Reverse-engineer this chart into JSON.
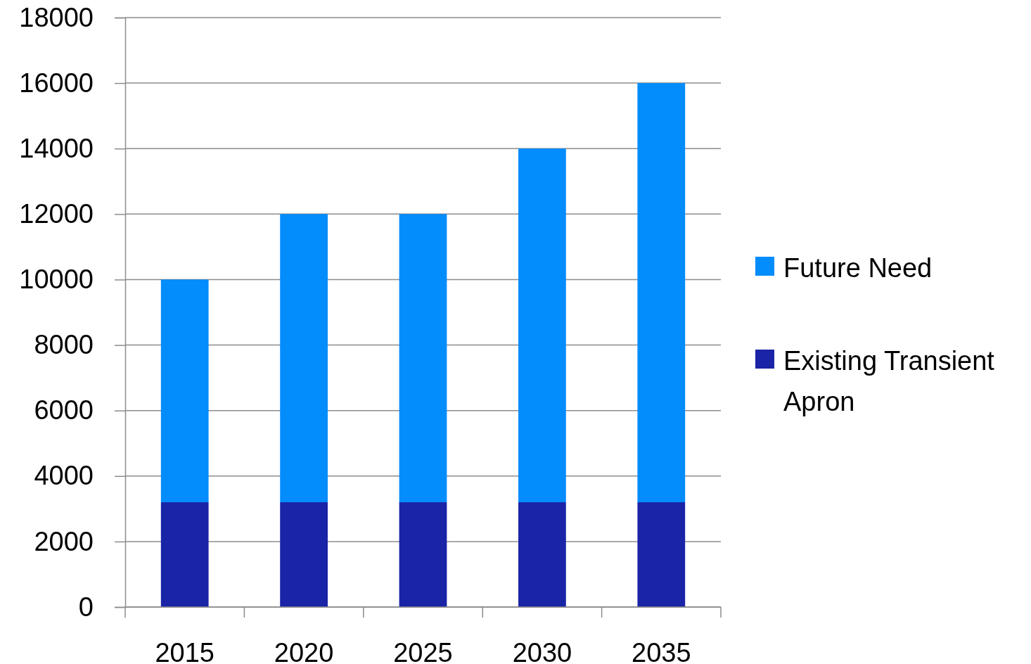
{
  "chart_data": {
    "type": "bar",
    "stacked": true,
    "categories": [
      "2015",
      "2020",
      "2025",
      "2030",
      "2035"
    ],
    "series": [
      {
        "name": "Existing Transient Apron",
        "color": "#1a24a6",
        "values": [
          3200,
          3200,
          3200,
          3200,
          3200
        ]
      },
      {
        "name": "Future Need",
        "color": "#038cfc",
        "values": [
          6800,
          8800,
          8800,
          10800,
          12800
        ]
      }
    ],
    "ylim": [
      0,
      18000
    ],
    "yticks": [
      0,
      2000,
      4000,
      6000,
      8000,
      10000,
      12000,
      14000,
      16000,
      18000
    ],
    "grid": "y",
    "legend": "right"
  }
}
